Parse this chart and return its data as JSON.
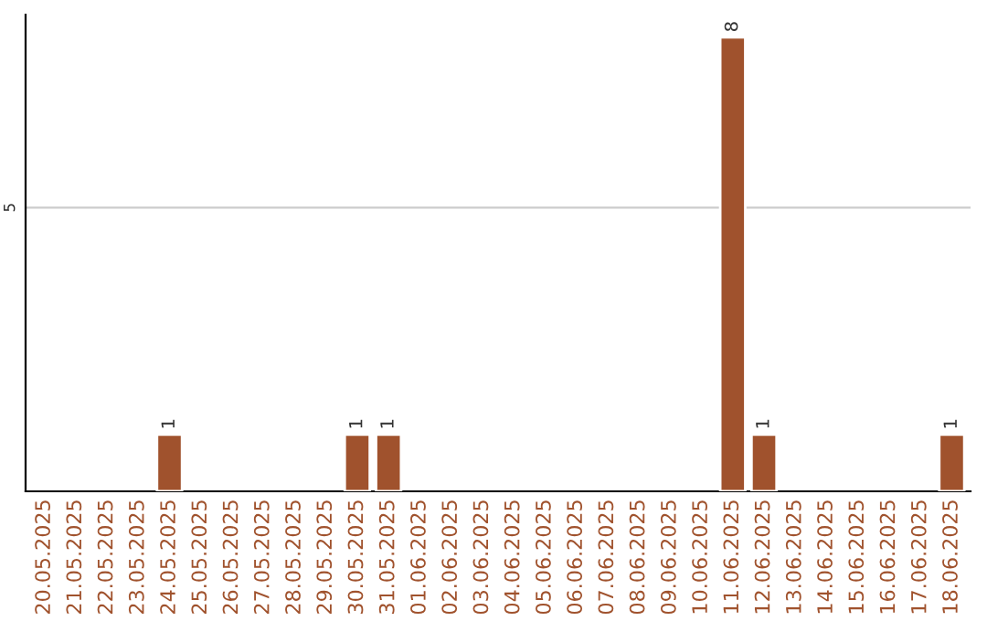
{
  "chart_data": {
    "type": "bar",
    "categories": [
      "20.05.2025",
      "21.05.2025",
      "22.05.2025",
      "23.05.2025",
      "24.05.2025",
      "25.05.2025",
      "26.05.2025",
      "27.05.2025",
      "28.05.2025",
      "29.05.2025",
      "30.05.2025",
      "31.05.2025",
      "01.06.2025",
      "02.06.2025",
      "03.06.2025",
      "04.06.2025",
      "05.06.2025",
      "06.06.2025",
      "07.06.2025",
      "08.06.2025",
      "09.06.2025",
      "10.06.2025",
      "11.06.2025",
      "12.06.2025",
      "13.06.2025",
      "14.06.2025",
      "15.06.2025",
      "16.06.2025",
      "17.06.2025",
      "18.06.2025"
    ],
    "values": [
      null,
      null,
      null,
      null,
      1,
      null,
      null,
      null,
      null,
      null,
      1,
      1,
      null,
      null,
      null,
      null,
      null,
      null,
      null,
      null,
      null,
      null,
      8,
      1,
      null,
      null,
      null,
      null,
      null,
      1
    ],
    "value_labels": [
      null,
      null,
      null,
      null,
      "1",
      null,
      null,
      null,
      null,
      null,
      "1",
      "1",
      null,
      null,
      null,
      null,
      null,
      null,
      null,
      null,
      null,
      null,
      "8",
      "1",
      null,
      null,
      null,
      null,
      null,
      "1"
    ],
    "color": "#a0522d",
    "ylim": [
      0,
      8.4
    ],
    "yticks": [
      5
    ],
    "grid": "y"
  }
}
